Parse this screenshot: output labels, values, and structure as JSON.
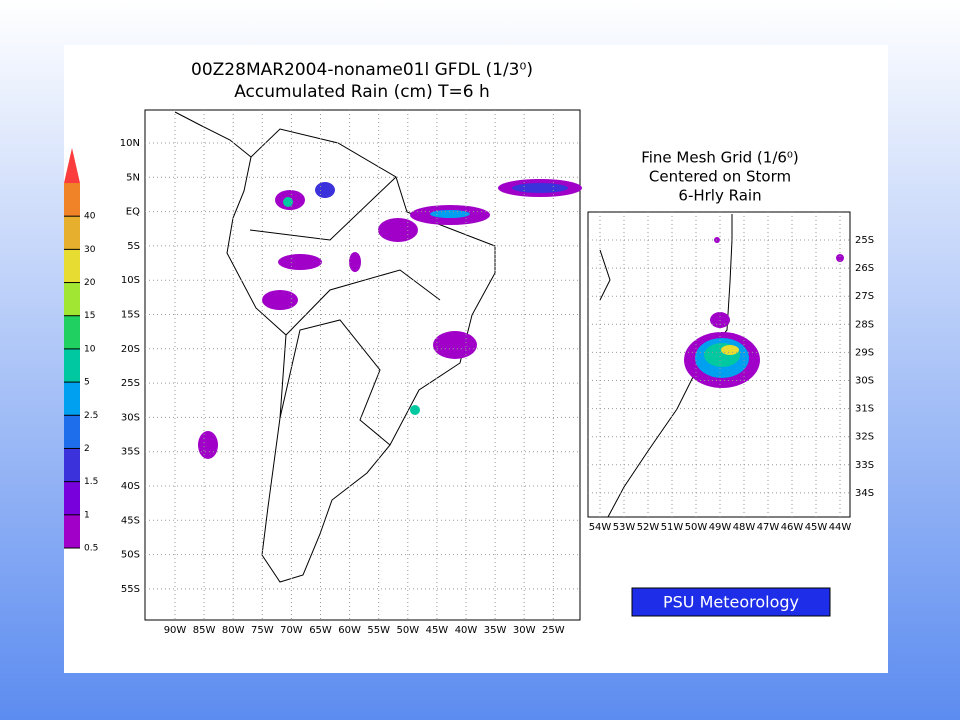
{
  "title_lines": [
    "00Z28MAR2004-noname01l GFDL (1/3⁰)",
    "Accumulated Rain (cm) T=6 h"
  ],
  "main_map": {
    "lat_labels": [
      "10N",
      "5N",
      "EQ",
      "5S",
      "10S",
      "15S",
      "20S",
      "25S",
      "30S",
      "35S",
      "40S",
      "45S",
      "50S",
      "55S"
    ],
    "lon_labels": [
      "90W",
      "85W",
      "80W",
      "75W",
      "70W",
      "65W",
      "60W",
      "55W",
      "50W",
      "45W",
      "40W",
      "35W",
      "30W",
      "25W"
    ]
  },
  "colorbar": {
    "levels": [
      0.5,
      1,
      1.5,
      2,
      2.5,
      5,
      10,
      15,
      20,
      30,
      40
    ],
    "colors": [
      "#a000c8",
      "#7800dc",
      "#3c32dc",
      "#1e6eeb",
      "#00a0f0",
      "#00c8a0",
      "#20d060",
      "#a0e632",
      "#e6dc32",
      "#e6af2d",
      "#f08228",
      "#fa3c3c"
    ]
  },
  "inset": {
    "title_lines": [
      "Fine Mesh Grid (1/6⁰)",
      "Centered on Storm",
      "6-Hrly Rain"
    ],
    "lat_labels": [
      "25S",
      "26S",
      "27S",
      "28S",
      "29S",
      "30S",
      "31S",
      "32S",
      "33S",
      "34S"
    ],
    "lon_labels": [
      "54W",
      "53W",
      "52W",
      "51W",
      "50W",
      "49W",
      "48W",
      "47W",
      "46W",
      "45W",
      "44W"
    ]
  },
  "badge": "PSU Meteorology"
}
